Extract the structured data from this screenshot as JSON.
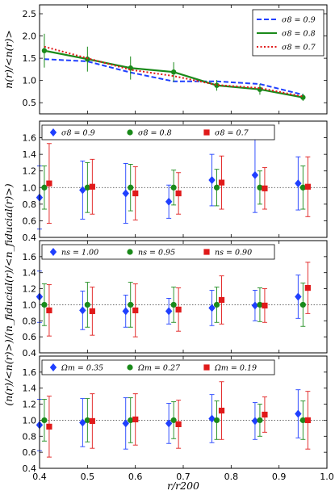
{
  "chart_data": [
    {
      "type": "line",
      "ylabel": "n(r)/<n(r)>",
      "xlim": [
        0.4,
        1.0
      ],
      "ylim": [
        0.25,
        2.7
      ],
      "yticks": [
        "0.5",
        "1.0",
        "1.5",
        "2.0",
        "2.5"
      ],
      "ytick_values": [
        0.5,
        1.0,
        1.5,
        2.0,
        2.5
      ],
      "legend_position": "top-right",
      "series": [
        {
          "name": "σ8 = 0.9",
          "color": "#1f3fff",
          "style": "dashed",
          "x": [
            0.41,
            0.5,
            0.59,
            0.68,
            0.77,
            0.86,
            0.95
          ],
          "y": [
            1.48,
            1.43,
            1.18,
            0.98,
            0.98,
            0.92,
            0.68
          ]
        },
        {
          "name": "σ8 = 0.8",
          "color": "#1a8a1a",
          "style": "solid",
          "x": [
            0.41,
            0.5,
            0.59,
            0.68,
            0.77,
            0.86,
            0.95
          ],
          "y": [
            1.67,
            1.48,
            1.28,
            1.19,
            0.89,
            0.8,
            0.62
          ],
          "err": [
            0.38,
            0.28,
            0.26,
            0.22,
            0.12,
            0.12,
            0.08
          ]
        },
        {
          "name": "σ8 = 0.7",
          "color": "#e01a1a",
          "style": "dotted",
          "x": [
            0.41,
            0.5,
            0.59,
            0.68,
            0.77,
            0.86,
            0.95
          ],
          "y": [
            1.76,
            1.5,
            1.24,
            1.1,
            0.9,
            0.83,
            0.64
          ]
        }
      ]
    },
    {
      "type": "scatter",
      "ylim": [
        0.4,
        1.8
      ],
      "yticks": [
        "0.4",
        "0.6",
        "0.8",
        "1.0",
        "1.2",
        "1.4",
        "1.6"
      ],
      "ytick_values": [
        0.4,
        0.6,
        0.8,
        1.0,
        1.2,
        1.4,
        1.6
      ],
      "reference_line": 1.0,
      "series": [
        {
          "name": "σ8 = 0.9",
          "marker": "diamond",
          "color": "#1f3fff",
          "x": [
            0.41,
            0.5,
            0.59,
            0.68,
            0.77,
            0.86,
            0.95
          ],
          "y": [
            0.88,
            0.97,
            0.93,
            0.83,
            1.09,
            1.15,
            1.05
          ],
          "err": [
            0.38,
            0.35,
            0.36,
            0.2,
            0.31,
            0.45,
            0.32
          ]
        },
        {
          "name": "σ8 = 0.8",
          "marker": "circle",
          "color": "#1a8a1a",
          "x": [
            0.41,
            0.5,
            0.59,
            0.68,
            0.77,
            0.86,
            0.95
          ],
          "y": [
            1.0,
            1.0,
            1.0,
            1.0,
            1.0,
            1.0,
            1.0
          ],
          "err": [
            0.26,
            0.3,
            0.28,
            0.21,
            0.22,
            0.2,
            0.26
          ]
        },
        {
          "name": "σ8 = 0.7",
          "marker": "square",
          "color": "#e01a1a",
          "x": [
            0.41,
            0.5,
            0.59,
            0.68,
            0.77,
            0.86,
            0.95
          ],
          "y": [
            1.05,
            1.01,
            0.93,
            0.93,
            1.06,
            0.99,
            1.01
          ],
          "err": [
            0.48,
            0.33,
            0.32,
            0.25,
            0.32,
            0.25,
            0.36
          ]
        }
      ]
    },
    {
      "type": "scatter",
      "ylim": [
        0.4,
        1.8
      ],
      "yticks": [
        "0.4",
        "0.6",
        "0.8",
        "1.0",
        "1.2",
        "1.4",
        "1.6"
      ],
      "ytick_values": [
        0.4,
        0.6,
        0.8,
        1.0,
        1.2,
        1.4,
        1.6
      ],
      "reference_line": 1.0,
      "series": [
        {
          "name": "ns = 1.00",
          "marker": "diamond",
          "color": "#1f3fff",
          "x": [
            0.41,
            0.5,
            0.59,
            0.68,
            0.77,
            0.86,
            0.95
          ],
          "y": [
            1.1,
            0.93,
            0.92,
            0.92,
            0.96,
            0.99,
            1.1
          ],
          "err": [
            0.32,
            0.24,
            0.2,
            0.16,
            0.22,
            0.19,
            0.27
          ]
        },
        {
          "name": "ns = 0.95",
          "marker": "circle",
          "color": "#1a8a1a",
          "x": [
            0.41,
            0.5,
            0.59,
            0.68,
            0.77,
            0.86,
            0.95
          ],
          "y": [
            1.0,
            1.0,
            1.0,
            1.0,
            1.0,
            1.0,
            1.0
          ],
          "err": [
            0.26,
            0.28,
            0.28,
            0.22,
            0.22,
            0.21,
            0.27
          ]
        },
        {
          "name": "ns = 0.90",
          "marker": "square",
          "color": "#e01a1a",
          "x": [
            0.41,
            0.5,
            0.59,
            0.68,
            0.77,
            0.86,
            0.95
          ],
          "y": [
            0.93,
            0.92,
            0.93,
            0.94,
            1.06,
            0.99,
            1.21
          ],
          "err": [
            0.32,
            0.3,
            0.33,
            0.27,
            0.3,
            0.21,
            0.32
          ]
        }
      ]
    },
    {
      "type": "scatter",
      "xlabel": "r/r200",
      "ylim": [
        0.4,
        1.8
      ],
      "yticks": [
        "0.4",
        "0.6",
        "0.8",
        "1.0",
        "1.2",
        "1.4",
        "1.6"
      ],
      "ytick_values": [
        0.4,
        0.6,
        0.8,
        1.0,
        1.2,
        1.4,
        1.6
      ],
      "xticks": [
        "0.4",
        "0.5",
        "0.6",
        "0.7",
        "0.8",
        "0.9",
        "1.0"
      ],
      "xtick_values": [
        0.4,
        0.5,
        0.6,
        0.7,
        0.8,
        0.9,
        1.0
      ],
      "reference_line": 1.0,
      "series": [
        {
          "name": "Ωm = 0.35",
          "marker": "diamond",
          "color": "#1f3fff",
          "x": [
            0.41,
            0.5,
            0.59,
            0.68,
            0.77,
            0.86,
            0.95
          ],
          "y": [
            0.94,
            0.97,
            0.96,
            0.96,
            1.02,
            0.99,
            1.08
          ],
          "err": [
            0.32,
            0.3,
            0.32,
            0.25,
            0.3,
            0.23,
            0.3
          ]
        },
        {
          "name": "Ωm = 0.27",
          "marker": "circle",
          "color": "#1a8a1a",
          "x": [
            0.41,
            0.5,
            0.59,
            0.68,
            0.77,
            0.86,
            0.95
          ],
          "y": [
            1.0,
            1.0,
            1.0,
            1.0,
            1.0,
            1.0,
            1.0
          ],
          "err": [
            0.26,
            0.27,
            0.28,
            0.23,
            0.24,
            0.2,
            0.24
          ]
        },
        {
          "name": "Ωm = 0.19",
          "marker": "square",
          "color": "#e01a1a",
          "x": [
            0.41,
            0.5,
            0.59,
            0.68,
            0.77,
            0.86,
            0.95
          ],
          "y": [
            0.92,
            0.99,
            1.01,
            0.95,
            1.12,
            1.07,
            1.0
          ],
          "err": [
            0.38,
            0.34,
            0.32,
            0.3,
            0.36,
            0.22,
            0.36
          ]
        }
      ]
    }
  ],
  "shared_ylabel": "(n(r)/<n(r)>)/(n_fiducial(r)/<n_fiducial(r)>)"
}
